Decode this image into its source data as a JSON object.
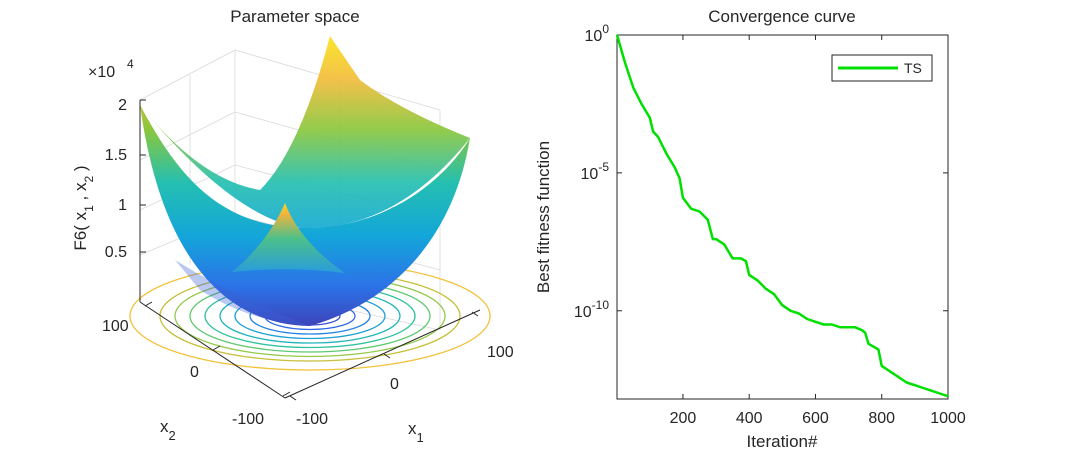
{
  "chart_data": [
    {
      "type": "surface",
      "title": "Parameter space",
      "function": "F6",
      "zlabel": "F6( x_1 , x_2 )",
      "xlabel": "x_1",
      "ylabel": "x_2",
      "x_ticks": [
        "-100",
        "0",
        "100"
      ],
      "y_ticks": [
        "100",
        "0",
        "-100"
      ],
      "z_ticks": [
        "0.5",
        "1",
        "1.5",
        "2"
      ],
      "z_exponent": "×10",
      "z_exponent_power": "4",
      "xlim": [
        -100,
        100
      ],
      "ylim": [
        -100,
        100
      ],
      "zlim": [
        0,
        20000
      ],
      "contour_levels": [
        0.05,
        0.1,
        0.15,
        0.2,
        0.25,
        0.3,
        0.35,
        0.4,
        0.45,
        0.5,
        0.6
      ]
    },
    {
      "type": "line",
      "title": "Convergence curve",
      "xlabel": "Iteration#",
      "ylabel": "Best fitness function",
      "yscale": "log",
      "xlim": [
        1,
        1000
      ],
      "ylim_exp": [
        -13.2,
        0
      ],
      "x_ticks": [
        "200",
        "400",
        "600",
        "800",
        "1000"
      ],
      "y_ticks": [
        {
          "base": "10",
          "exp": "0",
          "value_exp": 0
        },
        {
          "base": "10",
          "exp": "-5",
          "value_exp": -5
        },
        {
          "base": "10",
          "exp": "-10",
          "value_exp": -10
        }
      ],
      "series": [
        {
          "name": "TS",
          "color": "#00e000",
          "x": [
            1,
            25,
            50,
            75,
            100,
            110,
            125,
            150,
            175,
            190,
            200,
            225,
            250,
            275,
            290,
            300,
            325,
            350,
            375,
            390,
            400,
            425,
            450,
            475,
            500,
            525,
            550,
            575,
            600,
            625,
            650,
            675,
            700,
            720,
            740,
            750,
            760,
            775,
            790,
            800,
            825,
            850,
            875,
            900,
            925,
            950,
            975,
            1000
          ],
          "y_exp": [
            0,
            -1.0,
            -1.9,
            -2.5,
            -3.0,
            -3.5,
            -3.7,
            -4.3,
            -4.8,
            -5.2,
            -5.9,
            -6.3,
            -6.4,
            -6.7,
            -7.4,
            -7.4,
            -7.6,
            -8.1,
            -8.1,
            -8.2,
            -8.7,
            -8.9,
            -9.2,
            -9.4,
            -9.8,
            -10.0,
            -10.1,
            -10.3,
            -10.4,
            -10.5,
            -10.5,
            -10.6,
            -10.6,
            -10.6,
            -10.7,
            -10.8,
            -11.2,
            -11.3,
            -11.4,
            -12.0,
            -12.2,
            -12.4,
            -12.6,
            -12.7,
            -12.8,
            -12.9,
            -13.0,
            -13.1
          ]
        }
      ]
    }
  ]
}
